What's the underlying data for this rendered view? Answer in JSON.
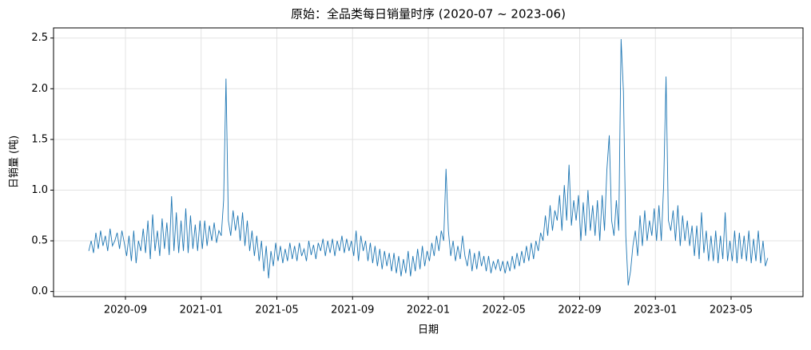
{
  "chart_data": {
    "type": "line",
    "title": "原始：全品类每日销量时序 (2020-07 ~ 2023-06)",
    "xlabel": "日期",
    "ylabel": "日销量 (吨)",
    "color": "#1f77b4",
    "grid": true,
    "x": [
      "2020-07",
      "2020-08",
      "2020-09",
      "2020-10",
      "2020-11",
      "2020-12",
      "2021-01",
      "2021-02",
      "2021-03",
      "2021-04",
      "2021-05",
      "2021-06",
      "2021-07",
      "2021-08",
      "2021-09",
      "2021-10",
      "2021-11",
      "2021-12",
      "2022-01",
      "2022-02",
      "2022-03",
      "2022-04",
      "2022-05",
      "2022-06",
      "2022-07",
      "2022-08",
      "2022-09",
      "2022-10",
      "2022-11",
      "2022-12",
      "2023-01",
      "2023-02",
      "2023-03",
      "2023-04",
      "2023-05",
      "2023-06"
    ],
    "values": [
      [
        0.4,
        0.5,
        0.38,
        0.58,
        0.42,
        0.6,
        0.45,
        0.55
      ],
      [
        0.4,
        0.62,
        0.45,
        0.5,
        0.58,
        0.42,
        0.6,
        0.48
      ],
      [
        0.35,
        0.55,
        0.3,
        0.6,
        0.28,
        0.5,
        0.4,
        0.62
      ],
      [
        0.38,
        0.7,
        0.32,
        0.76,
        0.4,
        0.6,
        0.35,
        0.72
      ],
      [
        0.42,
        0.68,
        0.36,
        0.94,
        0.4,
        0.78,
        0.38,
        0.7
      ],
      [
        0.4,
        0.82,
        0.38,
        0.75,
        0.42,
        0.66,
        0.4,
        0.7
      ],
      [
        0.42,
        0.7,
        0.45,
        0.65,
        0.5,
        0.68,
        0.48,
        0.6
      ],
      [
        0.55,
        0.9,
        2.1,
        0.7,
        0.55,
        0.8,
        0.6,
        0.75
      ],
      [
        0.5,
        0.78,
        0.45,
        0.7,
        0.4,
        0.6,
        0.35,
        0.55
      ],
      [
        0.3,
        0.5,
        0.2,
        0.45,
        0.13,
        0.4,
        0.25,
        0.48
      ],
      [
        0.3,
        0.45,
        0.28,
        0.42,
        0.3,
        0.48,
        0.32,
        0.45
      ],
      [
        0.3,
        0.48,
        0.35,
        0.42,
        0.3,
        0.5,
        0.36,
        0.46
      ],
      [
        0.32,
        0.48,
        0.4,
        0.52,
        0.35,
        0.5,
        0.38,
        0.52
      ],
      [
        0.35,
        0.5,
        0.4,
        0.55,
        0.38,
        0.52,
        0.4,
        0.5
      ],
      [
        0.35,
        0.6,
        0.3,
        0.55,
        0.4,
        0.5,
        0.3,
        0.48
      ],
      [
        0.28,
        0.45,
        0.25,
        0.42,
        0.22,
        0.4,
        0.25,
        0.38
      ],
      [
        0.2,
        0.38,
        0.18,
        0.35,
        0.15,
        0.32,
        0.18,
        0.4
      ],
      [
        0.15,
        0.35,
        0.2,
        0.42,
        0.22,
        0.45,
        0.25,
        0.4
      ],
      [
        0.3,
        0.48,
        0.35,
        0.55,
        0.4,
        0.6,
        0.5,
        1.21
      ],
      [
        0.6,
        0.35,
        0.5,
        0.3,
        0.45,
        0.32,
        0.55,
        0.35
      ],
      [
        0.25,
        0.42,
        0.2,
        0.38,
        0.22,
        0.4,
        0.25,
        0.35
      ],
      [
        0.2,
        0.35,
        0.18,
        0.3,
        0.22,
        0.32,
        0.2,
        0.3
      ],
      [
        0.18,
        0.3,
        0.2,
        0.35,
        0.22,
        0.38,
        0.25,
        0.4
      ],
      [
        0.28,
        0.45,
        0.3,
        0.48,
        0.32,
        0.5,
        0.4,
        0.58
      ],
      [
        0.5,
        0.75,
        0.55,
        0.85,
        0.6,
        0.8,
        0.7,
        0.95
      ],
      [
        0.6,
        1.05,
        0.7,
        1.25,
        0.65,
        0.9,
        0.7,
        0.95
      ],
      [
        0.5,
        0.88,
        0.55,
        1.0,
        0.6,
        0.85,
        0.55,
        0.9
      ],
      [
        0.5,
        0.95,
        0.6,
        1.2,
        1.54,
        0.7,
        0.55,
        0.9
      ],
      [
        0.6,
        2.49,
        1.97,
        0.55,
        0.06,
        0.2,
        0.45,
        0.6
      ],
      [
        0.35,
        0.75,
        0.45,
        0.8,
        0.5,
        0.7,
        0.55,
        0.82
      ],
      [
        0.5,
        0.85,
        0.5,
        1.05,
        2.12,
        0.7,
        0.6,
        0.8
      ],
      [
        0.5,
        0.85,
        0.45,
        0.75,
        0.5,
        0.7,
        0.45,
        0.65
      ],
      [
        0.35,
        0.65,
        0.32,
        0.78,
        0.38,
        0.6,
        0.3,
        0.55
      ],
      [
        0.3,
        0.6,
        0.28,
        0.55,
        0.32,
        0.78,
        0.3,
        0.5
      ],
      [
        0.3,
        0.6,
        0.28,
        0.58,
        0.32,
        0.55,
        0.3,
        0.6
      ],
      [
        0.28,
        0.52,
        0.3,
        0.6,
        0.28,
        0.5,
        0.25,
        0.33
      ]
    ],
    "ylim": [
      -0.05,
      2.6
    ],
    "yticks": [
      {
        "value": 0,
        "label": "0.0"
      },
      0.5,
      {
        "value": 1,
        "label": "1.0"
      },
      1.5,
      {
        "value": 2,
        "label": "2.0"
      },
      2.5
    ],
    "xticks": [
      "2020-09",
      "2021-01",
      "2021-05",
      "2021-09",
      "2022-01",
      "2022-05",
      "2022-09",
      "2023-01",
      "2023-05"
    ]
  }
}
